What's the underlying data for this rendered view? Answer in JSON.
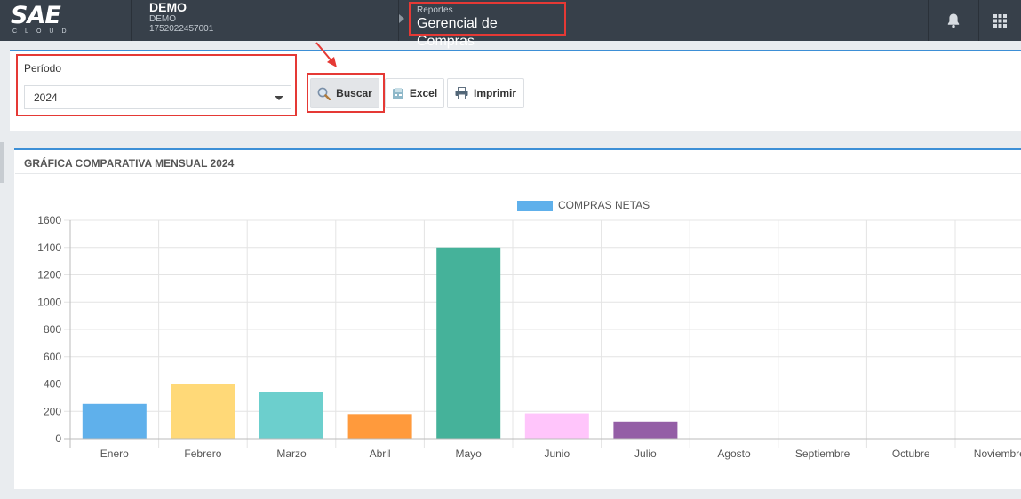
{
  "header": {
    "logo_text": "SAE",
    "logo_sub": "CLOUD",
    "company_name": "DEMO",
    "company_sub": "DEMO",
    "company_id": "1752022457001",
    "module_small": "Reportes",
    "module_title": "Gerencial de Compras",
    "icons": [
      "bell-icon",
      "apps-grid-icon"
    ]
  },
  "filters": {
    "period_label": "Período",
    "period_value": "2024",
    "buscar_label": "Buscar",
    "excel_label": "Excel",
    "imprimir_label": "Imprimir"
  },
  "chart_panel": {
    "title": "GRÁFICA COMPARATIVA MENSUAL 2024"
  },
  "chart_data": {
    "type": "bar",
    "title": "",
    "xlabel": "",
    "ylabel": "",
    "legend": {
      "position": "top",
      "label": "COMPRAS NETAS",
      "color": "#5fb0eb"
    },
    "grid": true,
    "ylim": [
      0,
      1600
    ],
    "yticks": [
      0,
      200,
      400,
      600,
      800,
      1000,
      1200,
      1400,
      1600
    ],
    "categories": [
      "Enero",
      "Febrero",
      "Marzo",
      "Abril",
      "Mayo",
      "Junio",
      "Julio",
      "Agosto",
      "Septiembre",
      "Octubre",
      "Noviembre"
    ],
    "series": [
      {
        "name": "COMPRAS NETAS",
        "values": [
          255,
          400,
          340,
          180,
          1400,
          185,
          125,
          0,
          0,
          0,
          0
        ],
        "colors": [
          "#5fb0eb",
          "#ffd978",
          "#6ccfcd",
          "#ff9a3c",
          "#45b29a",
          "#ffc5fb",
          "#945ea6",
          "#cccccc",
          "#cccccc",
          "#cccccc",
          "#cccccc"
        ]
      }
    ]
  },
  "annotations": {
    "highlight_color": "#e53935"
  }
}
